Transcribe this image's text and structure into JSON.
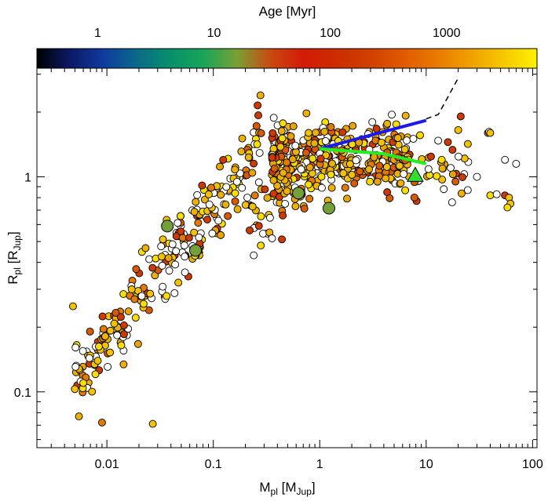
{
  "chart_data": {
    "type": "scatter",
    "title": "",
    "xlabel": "M_pl [M_Jup]",
    "xlabel_parts": {
      "main": "M",
      "sub": "pl",
      "bracket_main": "M",
      "bracket_sub": "Jup"
    },
    "ylabel": "R_pl [R_Jup]",
    "ylabel_parts": {
      "main": "R",
      "sub": "pl",
      "bracket_main": "R",
      "bracket_sub": "Jup"
    },
    "x_scale": "log",
    "y_scale": "log",
    "xlim": [
      0.0022,
      110
    ],
    "ylim": [
      0.055,
      3.2
    ],
    "x_ticks": [
      {
        "value": 0.01,
        "label": "0.01"
      },
      {
        "value": 0.1,
        "label": "0.1"
      },
      {
        "value": 1,
        "label": "1"
      },
      {
        "value": 10,
        "label": "10"
      },
      {
        "value": 100,
        "label": "100"
      }
    ],
    "y_ticks": [
      {
        "value": 0.1,
        "label": "0.1"
      },
      {
        "value": 1,
        "label": "1"
      }
    ],
    "colorbar": {
      "title": "Age [Myr]",
      "scale": "log",
      "range": [
        0.3,
        6000
      ],
      "ticks": [
        {
          "value": 1,
          "label": "1"
        },
        {
          "value": 10,
          "label": "10"
        },
        {
          "value": 100,
          "label": "100"
        },
        {
          "value": 1000,
          "label": "1000"
        }
      ],
      "colormap": [
        "#000000",
        "#0c1a66",
        "#0e3b9e",
        "#0a6a8a",
        "#08906a",
        "#18a558",
        "#7aa035",
        "#c84a10",
        "#d41a08",
        "#cc2d00",
        "#d04000",
        "#e05a00",
        "#e87a00",
        "#f0a000",
        "#f6c800",
        "#fff000"
      ]
    },
    "highlight_points": [
      {
        "x": 0.037,
        "y": 0.59,
        "age": 15
      },
      {
        "x": 0.068,
        "y": 0.455,
        "age": 15
      },
      {
        "x": 0.63,
        "y": 0.84,
        "age": 15
      },
      {
        "x": 1.22,
        "y": 0.715,
        "age": 15
      }
    ],
    "triangle_point": {
      "x": 7.9,
      "y": 1.01,
      "color": "#33dd33"
    },
    "model_lines": [
      {
        "color": "#1a1aee",
        "style": "solid",
        "x": [
          1.0,
          10.0
        ],
        "y": [
          1.35,
          1.83
        ]
      },
      {
        "color": "#22ee22",
        "style": "solid",
        "x": [
          1.0,
          4.0,
          10.0
        ],
        "y": [
          1.35,
          1.28,
          1.15
        ]
      },
      {
        "color": "#000000",
        "style": "dashed",
        "x": [
          10.0,
          13.0,
          16.0,
          20.0
        ],
        "y": [
          1.86,
          1.95,
          2.35,
          2.88
        ]
      }
    ],
    "points_summary": "Several hundred exoplanets; age-colored (orange/yellow mostly) or open (no age)."
  }
}
